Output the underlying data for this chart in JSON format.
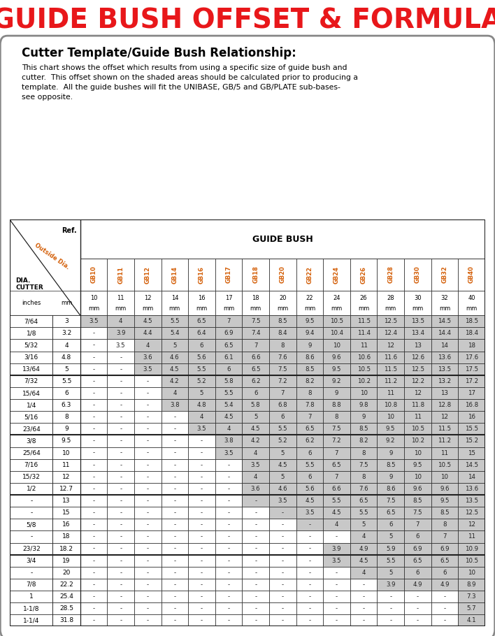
{
  "title": "GUIDE BUSH OFFSET & FORMULA",
  "subtitle": "Cutter Template/Guide Bush Relationship:",
  "description": "This chart shows the offset which results from using a specific size of guide bush and\ncutter.  This offset shown on the shaded areas should be calculated prior to producing a\ntemplate.  All the guide bushes will fit the UNIBASE, GB/5 and GB/PLATE sub-bases-\nsee opposite.",
  "guide_bush_label": "GUIDE BUSH",
  "col_headers_top": [
    "GB10",
    "GB11",
    "GB12",
    "GB14",
    "GB16",
    "GB17",
    "GB18",
    "GB20",
    "GB22",
    "GB24",
    "GB26",
    "GB28",
    "GB30",
    "GB32",
    "GB40"
  ],
  "col_headers_bot": [
    "10\nmm",
    "11\nmm",
    "12\nmm",
    "14\nmm",
    "16\nmm",
    "17\nmm",
    "18\nmm",
    "20\nmm",
    "22\nmm",
    "24\nmm",
    "26\nmm",
    "28\nmm",
    "30\nmm",
    "32\nmm",
    "40\nmm"
  ],
  "row_labels_inch": [
    "7/64",
    "1/8",
    "5/32",
    "3/16",
    "13/64",
    "7/32",
    "15/64",
    "1/4",
    "5/16",
    "23/64",
    "3/8",
    "25/64",
    "7/16",
    "15/32",
    "1/2",
    "-",
    "-",
    "5/8",
    "-",
    "23/32",
    "3/4",
    "-",
    "7/8",
    "1",
    "1-1/8",
    "1-1/4"
  ],
  "row_labels_mm": [
    "3",
    "3.2",
    "4",
    "4.8",
    "5",
    "5.5",
    "6",
    "6.3",
    "8",
    "9",
    "9.5",
    "10",
    "11",
    "12",
    "12.7",
    "13",
    "15",
    "16",
    "18",
    "18.2",
    "19",
    "20",
    "22.2",
    "25.4",
    "28.5",
    "31.8"
  ],
  "data": [
    [
      "3.5",
      "4",
      "4.5",
      "5.5",
      "6.5",
      "7",
      "7.5",
      "8.5",
      "9.5",
      "10.5",
      "11.5",
      "12.5",
      "13.5",
      "14.5",
      "18.5"
    ],
    [
      "-",
      "3.9",
      "4.4",
      "5.4",
      "6.4",
      "6.9",
      "7.4",
      "8.4",
      "9.4",
      "10.4",
      "11.4",
      "12.4",
      "13.4",
      "14.4",
      "18.4"
    ],
    [
      "-",
      "3.5",
      "4",
      "5",
      "6",
      "6.5",
      "7",
      "8",
      "9",
      "10",
      "11",
      "12",
      "13",
      "14",
      "18"
    ],
    [
      "-",
      "-",
      "3.6",
      "4.6",
      "5.6",
      "6.1",
      "6.6",
      "7.6",
      "8.6",
      "9.6",
      "10.6",
      "11.6",
      "12.6",
      "13.6",
      "17.6"
    ],
    [
      "-",
      "-",
      "3.5",
      "4.5",
      "5.5",
      "6",
      "6.5",
      "7.5",
      "8.5",
      "9.5",
      "10.5",
      "11.5",
      "12.5",
      "13.5",
      "17.5"
    ],
    [
      "-",
      "-",
      "-",
      "4.2",
      "5.2",
      "5.8",
      "6.2",
      "7.2",
      "8.2",
      "9.2",
      "10.2",
      "11.2",
      "12.2",
      "13.2",
      "17.2"
    ],
    [
      "-",
      "-",
      "-",
      "4",
      "5",
      "5.5",
      "6",
      "7",
      "8",
      "9",
      "10",
      "11",
      "12",
      "13",
      "17"
    ],
    [
      "-",
      "-",
      "-",
      "3.8",
      "4.8",
      "5.4",
      "5.8",
      "6.8",
      "7.8",
      "8.8",
      "9.8",
      "10.8",
      "11.8",
      "12.8",
      "16.8"
    ],
    [
      "-",
      "-",
      "-",
      "-",
      "4",
      "4.5",
      "5",
      "6",
      "7",
      "8",
      "9",
      "10",
      "11",
      "12",
      "16"
    ],
    [
      "-",
      "-",
      "-",
      "-",
      "3.5",
      "4",
      "4.5",
      "5.5",
      "6.5",
      "7.5",
      "8.5",
      "9.5",
      "10.5",
      "11.5",
      "15.5"
    ],
    [
      "-",
      "-",
      "-",
      "-",
      "-",
      "3.8",
      "4.2",
      "5.2",
      "6.2",
      "7.2",
      "8.2",
      "9.2",
      "10.2",
      "11.2",
      "15.2"
    ],
    [
      "-",
      "-",
      "-",
      "-",
      "-",
      "3.5",
      "4",
      "5",
      "6",
      "7",
      "8",
      "9",
      "10",
      "11",
      "15"
    ],
    [
      "-",
      "-",
      "-",
      "-",
      "-",
      "-",
      "3.5",
      "4.5",
      "5.5",
      "6.5",
      "7.5",
      "8.5",
      "9.5",
      "10.5",
      "14.5"
    ],
    [
      "-",
      "-",
      "-",
      "-",
      "-",
      "-",
      "4",
      "5",
      "6",
      "7",
      "8",
      "9",
      "10",
      "10",
      "14"
    ],
    [
      "-",
      "-",
      "-",
      "-",
      "-",
      "-",
      "3.6",
      "4.6",
      "5.6",
      "6.6",
      "7.6",
      "8.6",
      "9.6",
      "9.6",
      "13.6"
    ],
    [
      "-",
      "-",
      "-",
      "-",
      "-",
      "-",
      "-",
      "3.5",
      "4.5",
      "5.5",
      "6.5",
      "7.5",
      "8.5",
      "9.5",
      "13.5"
    ],
    [
      "-",
      "-",
      "-",
      "-",
      "-",
      "-",
      "-",
      "-",
      "3.5",
      "4.5",
      "5.5",
      "6.5",
      "7.5",
      "8.5",
      "12.5"
    ],
    [
      "-",
      "-",
      "-",
      "-",
      "-",
      "-",
      "-",
      "-",
      "-",
      "4",
      "5",
      "6",
      "7",
      "8",
      "12"
    ],
    [
      "-",
      "-",
      "-",
      "-",
      "-",
      "-",
      "-",
      "-",
      "-",
      "-",
      "4",
      "5",
      "6",
      "7",
      "11"
    ],
    [
      "-",
      "-",
      "-",
      "-",
      "-",
      "-",
      "-",
      "-",
      "-",
      "3.9",
      "4.9",
      "5.9",
      "6.9",
      "6.9",
      "10.9"
    ],
    [
      "-",
      "-",
      "-",
      "-",
      "-",
      "-",
      "-",
      "-",
      "-",
      "3.5",
      "4.5",
      "5.5",
      "6.5",
      "6.5",
      "10.5"
    ],
    [
      "-",
      "-",
      "-",
      "-",
      "-",
      "-",
      "-",
      "-",
      "-",
      "-",
      "4",
      "5",
      "6",
      "6",
      "10"
    ],
    [
      "-",
      "-",
      "-",
      "-",
      "-",
      "-",
      "-",
      "-",
      "-",
      "-",
      "-",
      "3.9",
      "4.9",
      "4.9",
      "8.9"
    ],
    [
      "-",
      "-",
      "-",
      "-",
      "-",
      "-",
      "-",
      "-",
      "-",
      "-",
      "-",
      "-",
      "-",
      "-",
      "7.3"
    ],
    [
      "-",
      "-",
      "-",
      "-",
      "-",
      "-",
      "-",
      "-",
      "-",
      "-",
      "-",
      "-",
      "-",
      "-",
      "5.7"
    ],
    [
      "-",
      "-",
      "-",
      "-",
      "-",
      "-",
      "-",
      "-",
      "-",
      "-",
      "-",
      "-",
      "-",
      "-",
      "4.1"
    ]
  ],
  "shaded_start_col": [
    0,
    1,
    2,
    2,
    2,
    3,
    3,
    3,
    4,
    4,
    5,
    5,
    6,
    6,
    6,
    6,
    7,
    8,
    10,
    9,
    9,
    10,
    11,
    14,
    14,
    14
  ],
  "group_sep_after": [
    4,
    9,
    14,
    19
  ],
  "title_color": "#e8171a",
  "header_orange": "#d4600a",
  "shade_color": "#c8c8c8",
  "dark": "#222222"
}
